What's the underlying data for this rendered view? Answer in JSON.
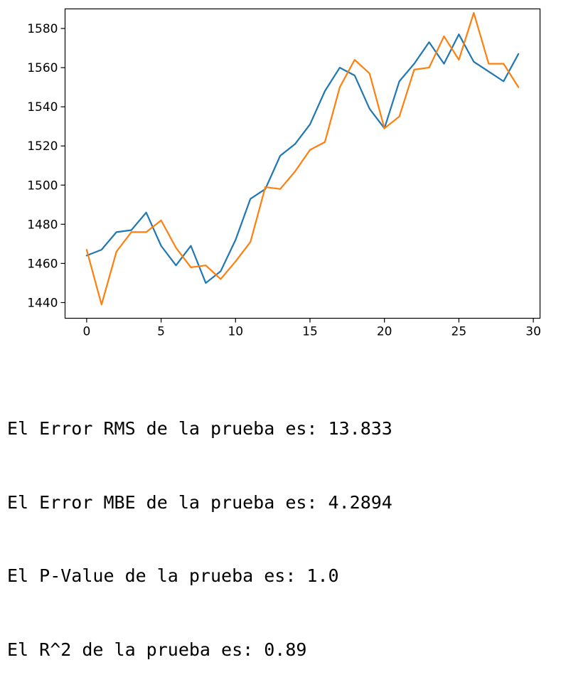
{
  "chart_data": {
    "type": "line",
    "title": "",
    "xlabel": "",
    "ylabel": "",
    "xlim": [
      -1.45,
      30.45
    ],
    "ylim": [
      1432,
      1590
    ],
    "xticks": [
      0,
      5,
      10,
      15,
      20,
      25,
      30
    ],
    "yticks": [
      1440,
      1460,
      1480,
      1500,
      1520,
      1540,
      1560,
      1580
    ],
    "grid": false,
    "x": [
      0,
      1,
      2,
      3,
      4,
      5,
      6,
      7,
      8,
      9,
      10,
      11,
      12,
      13,
      14,
      15,
      16,
      17,
      18,
      19,
      20,
      21,
      22,
      23,
      24,
      25,
      26,
      27,
      28,
      29
    ],
    "series": [
      {
        "color": "#1f77b4",
        "values": [
          1464,
          1467,
          1476,
          1477,
          1486,
          1469,
          1459,
          1469,
          1450,
          1456,
          1472,
          1493,
          1498,
          1515,
          1521,
          1531,
          1548,
          1560,
          1556,
          1539,
          1529,
          1553,
          1562,
          1573,
          1562,
          1577,
          1563,
          1558,
          1553,
          1567
        ]
      },
      {
        "color": "#ff7f0e",
        "values": [
          1467,
          1439,
          1466,
          1476,
          1476,
          1482,
          1468,
          1458,
          1459,
          1452,
          1461,
          1471,
          1499,
          1498,
          1507,
          1518,
          1522,
          1550,
          1564,
          1557,
          1529,
          1535,
          1559,
          1560,
          1576,
          1564,
          1588,
          1562,
          1562,
          1550
        ]
      }
    ]
  },
  "output": {
    "lines": [
      "El Error RMS de la prueba es: 13.833",
      "El Error MBE de la prueba es: 4.2894",
      "El P-Value de la prueba es: 1.0",
      "El R^2 de la prueba es: 0.89"
    ]
  }
}
